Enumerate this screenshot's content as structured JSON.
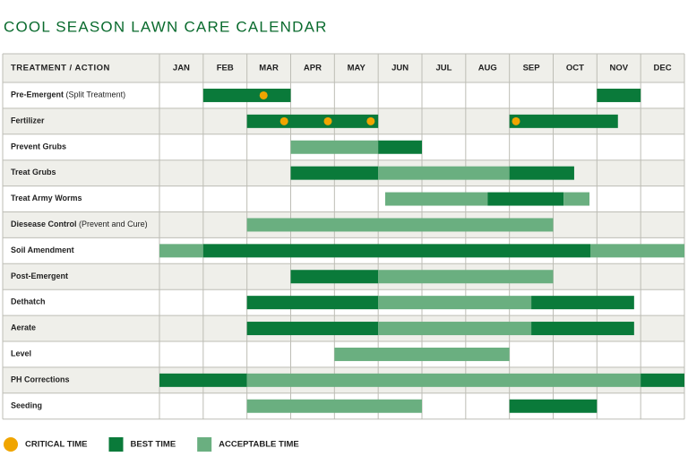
{
  "title": "COOL SEASON LAWN CARE CALENDAR",
  "header": "TREATMENT / ACTION",
  "months": [
    "JAN",
    "FEB",
    "MAR",
    "APR",
    "MAY",
    "JUN",
    "JUL",
    "AUG",
    "SEP",
    "OCT",
    "NOV",
    "DEC"
  ],
  "legend": [
    {
      "name": "CRITICAL TIME",
      "color": "#f0a500",
      "shape": "dot"
    },
    {
      "name": "BEST TIME",
      "color": "#0a7a3a",
      "shape": "square"
    },
    {
      "name": "ACCEPTABLE TIME",
      "color": "#6aaf80",
      "shape": "square"
    }
  ],
  "rows": [
    {
      "label": "Pre-Emergent",
      "note": "(Split Treatment)",
      "bars": [
        {
          "start": 1,
          "end": 3,
          "color": "#0a7a3a"
        },
        {
          "start": 10,
          "end": 11,
          "color": "#0a7a3a"
        }
      ],
      "dots": [
        2.38
      ]
    },
    {
      "label": "Fertilizer",
      "bars": [
        {
          "start": 2,
          "end": 5,
          "color": "#0a7a3a"
        },
        {
          "start": 8,
          "end": 10.48,
          "color": "#0a7a3a"
        }
      ],
      "dots": [
        2.85,
        3.85,
        4.83,
        8.15
      ]
    },
    {
      "label": "Prevent Grubs",
      "bars": [
        {
          "start": 3,
          "end": 5,
          "color": "#6aaf80"
        },
        {
          "start": 5,
          "end": 6,
          "color": "#0a7a3a"
        }
      ]
    },
    {
      "label": "Treat Grubs",
      "bars": [
        {
          "start": 3,
          "end": 5,
          "color": "#0a7a3a"
        },
        {
          "start": 5,
          "end": 8,
          "color": "#6aaf80"
        },
        {
          "start": 8,
          "end": 9.48,
          "color": "#0a7a3a"
        }
      ]
    },
    {
      "label": "Treat Army Worms",
      "bars": [
        {
          "start": 5.16,
          "end": 7.5,
          "color": "#6aaf80"
        },
        {
          "start": 7.5,
          "end": 9.24,
          "color": "#0a7a3a"
        },
        {
          "start": 9.24,
          "end": 9.83,
          "color": "#6aaf80"
        }
      ]
    },
    {
      "label": "Diesease Control",
      "note": "(Prevent and Cure)",
      "bars": [
        {
          "start": 2,
          "end": 9,
          "color": "#6aaf80"
        }
      ]
    },
    {
      "label": "Soil Amendment",
      "bars": [
        {
          "start": 0,
          "end": 1,
          "color": "#6aaf80"
        },
        {
          "start": 1,
          "end": 9.85,
          "color": "#0a7a3a"
        },
        {
          "start": 9.85,
          "end": 12,
          "color": "#6aaf80"
        }
      ]
    },
    {
      "label": "Post-Emergent",
      "bars": [
        {
          "start": 3,
          "end": 5,
          "color": "#0a7a3a"
        },
        {
          "start": 5,
          "end": 9,
          "color": "#6aaf80"
        }
      ]
    },
    {
      "label": "Dethatch",
      "bars": [
        {
          "start": 2,
          "end": 5,
          "color": "#0a7a3a"
        },
        {
          "start": 5,
          "end": 8.5,
          "color": "#6aaf80"
        },
        {
          "start": 8.5,
          "end": 10.85,
          "color": "#0a7a3a"
        }
      ]
    },
    {
      "label": "Aerate",
      "bars": [
        {
          "start": 2,
          "end": 5,
          "color": "#0a7a3a"
        },
        {
          "start": 5,
          "end": 8.5,
          "color": "#6aaf80"
        },
        {
          "start": 8.5,
          "end": 10.85,
          "color": "#0a7a3a"
        }
      ]
    },
    {
      "label": "Level",
      "bars": [
        {
          "start": 4,
          "end": 8,
          "color": "#6aaf80"
        }
      ]
    },
    {
      "label": "PH Corrections",
      "bars": [
        {
          "start": 0,
          "end": 2,
          "color": "#0a7a3a"
        },
        {
          "start": 2,
          "end": 11,
          "color": "#6aaf80"
        },
        {
          "start": 11,
          "end": 12,
          "color": "#0a7a3a"
        }
      ]
    },
    {
      "label": "Seeding",
      "bars": [
        {
          "start": 2,
          "end": 6,
          "color": "#6aaf80"
        },
        {
          "start": 8,
          "end": 10,
          "color": "#0a7a3a"
        }
      ]
    }
  ]
}
